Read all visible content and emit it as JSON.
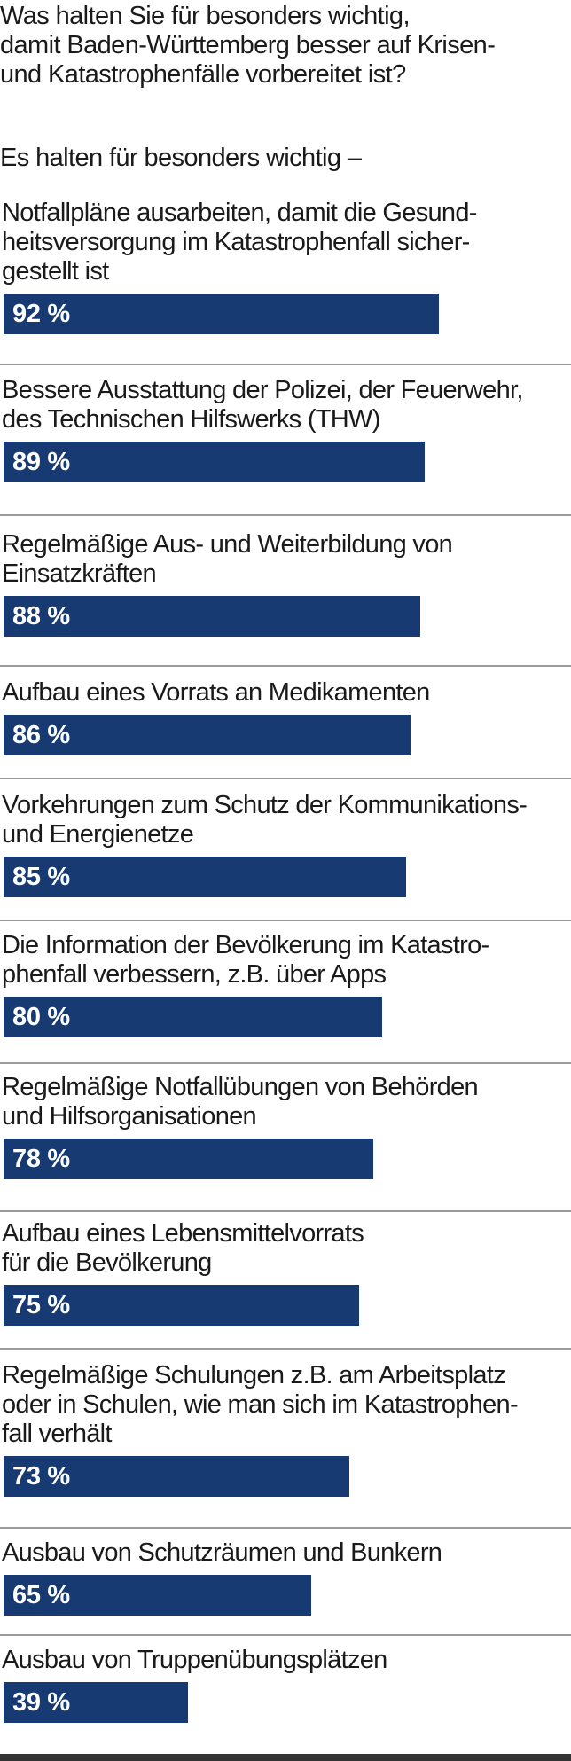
{
  "question": "Was halten Sie für besonders wichtig,\ndamit Baden-Württemberg besser auf Krisen-\nund Katastrophenfälle vorbereitet ist?",
  "subtitle": "Es halten für besonders wichtig –",
  "colors": {
    "bar": "#173a72",
    "bar_text": "#ffffff",
    "separator": "#9a9a9a",
    "bottom_rule": "#333333"
  },
  "chart_data": {
    "type": "bar",
    "orientation": "horizontal",
    "unit": "%",
    "xlim": [
      0,
      100
    ],
    "categories": [
      "Notfallpläne ausarbeiten, damit die Gesund-\nheitsversorgung im Katastrophenfall sicher-\ngestellt ist",
      "Bessere Ausstattung der Polizei, der Feuerwehr,\ndes Technischen Hilfswerks (THW)",
      "Regelmäßige Aus- und Weiterbildung von\nEinsatzkräften",
      "Aufbau eines Vorrats an Medikamenten",
      "Vorkehrungen zum Schutz der Kommunikations-\nund Energienetze",
      "Die Information der Bevölkerung im Katastro-\nphenfall verbessern, z.B. über Apps",
      "Regelmäßige Notfallübungen von Behörden\nund Hilfsorganisationen",
      "Aufbau eines Lebensmittelvorrats\nfür die Bevölkerung",
      "Regelmäßige Schulungen z.B. am Arbeitsplatz\noder in Schulen, wie man sich im Katastrophen-\nfall verhält",
      "Ausbau von Schutzräumen und Bunkern",
      "Ausbau von Truppenübungsplätzen"
    ],
    "values": [
      92,
      89,
      88,
      86,
      85,
      80,
      78,
      75,
      73,
      65,
      39
    ],
    "value_labels": [
      "92 %",
      "89 %",
      "88 %",
      "86 %",
      "85 %",
      "80 %",
      "78 %",
      "75 %",
      "73 %",
      "65 %",
      "39 %"
    ]
  }
}
